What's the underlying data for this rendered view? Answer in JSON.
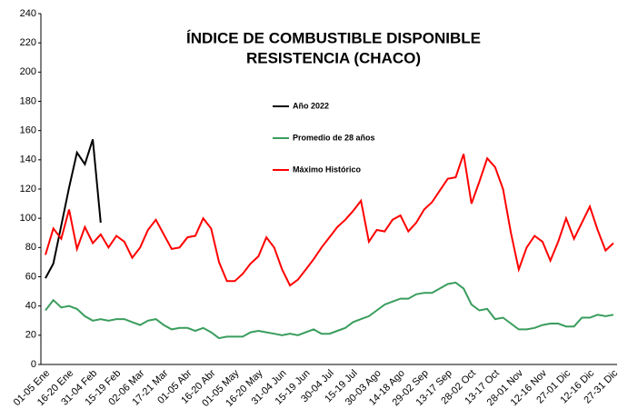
{
  "chart_data": {
    "type": "line",
    "title": [
      "ÍNDICE DE COMBUSTIBLE DISPONIBLE",
      "RESISTENCIA (CHACO)"
    ],
    "categories": [
      "01-05 Ene",
      null,
      null,
      "16-20 Ene",
      null,
      null,
      "31-04 Feb",
      null,
      null,
      "15-19 Feb",
      null,
      null,
      "02-06 Mar",
      null,
      null,
      "17-21 Mar",
      null,
      null,
      "01-05 Abr",
      null,
      null,
      "16-20 Abr",
      null,
      null,
      "01-05 May",
      null,
      null,
      "16-20 May",
      null,
      null,
      "31-04 Jun",
      null,
      null,
      "15-19 Jun",
      null,
      null,
      "30-04 Jul",
      null,
      null,
      "15-19 Jul",
      null,
      null,
      "30-03 Ago",
      null,
      null,
      "14-18 Ago",
      null,
      null,
      "29-02 Sep",
      null,
      null,
      "13-17 Sep",
      null,
      null,
      "28-02 Oct",
      null,
      null,
      "13-17 Oct",
      null,
      null,
      "28-01 Nov",
      null,
      null,
      "12-16 Nov",
      null,
      null,
      "27-01 Dic",
      null,
      null,
      "12-16 Dic",
      null,
      null,
      "27-31 Dic"
    ],
    "series": [
      {
        "name": "Año 2022",
        "color": "#000000",
        "values": [
          59,
          69,
          95,
          121,
          145,
          137,
          154,
          97,
          null,
          null,
          null,
          null,
          null,
          null,
          null,
          null,
          null,
          null,
          null,
          null,
          null,
          null,
          null,
          null,
          null,
          null,
          null,
          null,
          null,
          null,
          null,
          null,
          null,
          null,
          null,
          null,
          null,
          null,
          null,
          null,
          null,
          null,
          null,
          null,
          null,
          null,
          null,
          null,
          null,
          null,
          null,
          null,
          null,
          null,
          null,
          null,
          null,
          null,
          null,
          null,
          null,
          null,
          null,
          null,
          null,
          null,
          null,
          null,
          null,
          null,
          null,
          null,
          null
        ]
      },
      {
        "name": "Promedio de 28 años",
        "color": "#3a9d5d",
        "values": [
          37,
          44,
          39,
          40,
          38,
          33,
          30,
          31,
          30,
          31,
          31,
          29,
          27,
          30,
          31,
          27,
          24,
          25,
          25,
          23,
          25,
          22,
          18,
          19,
          19,
          19,
          22,
          23,
          22,
          21,
          20,
          21,
          20,
          22,
          24,
          21,
          21,
          23,
          25,
          29,
          31,
          33,
          37,
          41,
          43,
          45,
          45,
          48,
          49,
          49,
          52,
          55,
          56,
          52,
          41,
          37,
          38,
          31,
          32,
          28,
          24,
          24,
          25,
          27,
          28,
          28,
          26,
          26,
          32,
          32,
          34,
          33,
          34
        ]
      },
      {
        "name": "Máximo Histórico",
        "color": "#ff0000",
        "values": [
          75,
          93,
          86,
          106,
          79,
          94,
          83,
          89,
          80,
          88,
          84,
          73,
          80,
          92,
          99,
          89,
          79,
          80,
          87,
          88,
          100,
          93,
          70,
          57,
          57,
          62,
          69,
          74,
          87,
          80,
          65,
          54,
          58,
          65,
          72,
          80,
          87,
          94,
          99,
          105,
          112,
          84,
          92,
          91,
          99,
          102,
          91,
          97,
          106,
          111,
          119,
          127,
          128,
          144,
          110,
          125,
          141,
          135,
          120,
          90,
          65,
          80,
          88,
          84,
          71,
          84,
          100,
          86,
          97,
          108,
          92,
          78,
          83
        ]
      }
    ],
    "ylim": [
      0,
      240
    ],
    "yticks": [
      0,
      20,
      40,
      60,
      80,
      100,
      120,
      140,
      160,
      180,
      200,
      220,
      240
    ]
  }
}
